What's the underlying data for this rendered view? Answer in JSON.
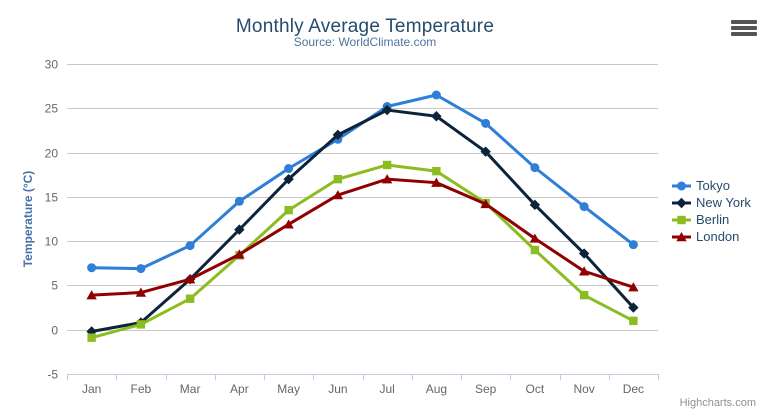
{
  "chart": {
    "credit": "Highcharts.com",
    "icons": {
      "menu": "hamburger-menu"
    }
  },
  "chart_data": {
    "type": "line",
    "title": "Monthly Average Temperature",
    "subtitle": "Source: WorldClimate.com",
    "categories": [
      "Jan",
      "Feb",
      "Mar",
      "Apr",
      "May",
      "Jun",
      "Jul",
      "Aug",
      "Sep",
      "Oct",
      "Nov",
      "Dec"
    ],
    "series": [
      {
        "name": "Tokyo",
        "color": "#2f7ed8",
        "marker": "circle",
        "values": [
          7.0,
          6.9,
          9.5,
          14.5,
          18.2,
          21.5,
          25.2,
          26.5,
          23.3,
          18.3,
          13.9,
          9.6
        ]
      },
      {
        "name": "New York",
        "color": "#0d233a",
        "marker": "diamond",
        "values": [
          -0.2,
          0.8,
          5.7,
          11.3,
          17.0,
          22.0,
          24.8,
          24.1,
          20.1,
          14.1,
          8.6,
          2.5
        ]
      },
      {
        "name": "Berlin",
        "color": "#8bbc21",
        "marker": "square",
        "values": [
          -0.9,
          0.6,
          3.5,
          8.4,
          13.5,
          17.0,
          18.6,
          17.9,
          14.3,
          9.0,
          3.9,
          1.0
        ]
      },
      {
        "name": "London",
        "color": "#910000",
        "marker": "triangle",
        "values": [
          3.9,
          4.2,
          5.7,
          8.5,
          11.9,
          15.2,
          17.0,
          16.6,
          14.2,
          10.3,
          6.6,
          4.8
        ]
      }
    ],
    "xlabel": "",
    "ylabel": "Temperature (°C)",
    "ylim": [
      -5,
      30
    ],
    "yticks": [
      -5,
      0,
      5,
      10,
      15,
      20,
      25,
      30
    ],
    "grid": true,
    "legend_position": "right"
  },
  "style": {
    "background": "#ffffff",
    "title_color": "#274b6d",
    "subtitle_color": "#4d759e",
    "axis_label_color": "#666666",
    "y_axis_title_color": "#4572a7",
    "grid_color": "#c8c8c8",
    "axis_line_color": "#c0d0e0",
    "legend_text_color": "#274b6d",
    "credit_color": "#909090",
    "menu_icon_color": "#545454"
  }
}
